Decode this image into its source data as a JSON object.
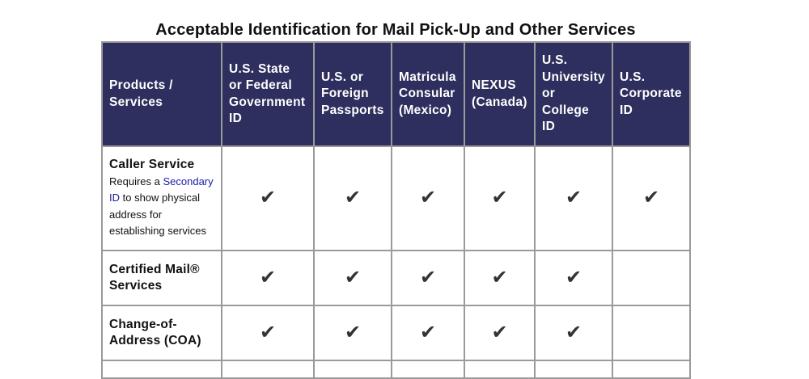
{
  "title": "Acceptable Identification for Mail Pick-Up and Other Services",
  "headers": [
    "Products / Services",
    "U.S. State or Federal Government ID",
    "U.S. or Foreign Passports",
    "Matricula Consular (Mexico)",
    "NEXUS (Canada)",
    "U.S. University or College ID",
    "U.S. Corporate ID"
  ],
  "check": "✔",
  "rows": [
    {
      "name": "Caller Service",
      "note_before": "Requires a ",
      "note_link": "Secondary ID",
      "note_after": " to show physical address for establishing services",
      "checks": [
        true,
        true,
        true,
        true,
        true,
        true
      ]
    },
    {
      "name": "Certified Mail® Services",
      "checks": [
        true,
        true,
        true,
        true,
        true,
        false
      ]
    },
    {
      "name": "Change-of-Address (COA)",
      "checks": [
        true,
        true,
        true,
        true,
        true,
        false
      ]
    }
  ]
}
